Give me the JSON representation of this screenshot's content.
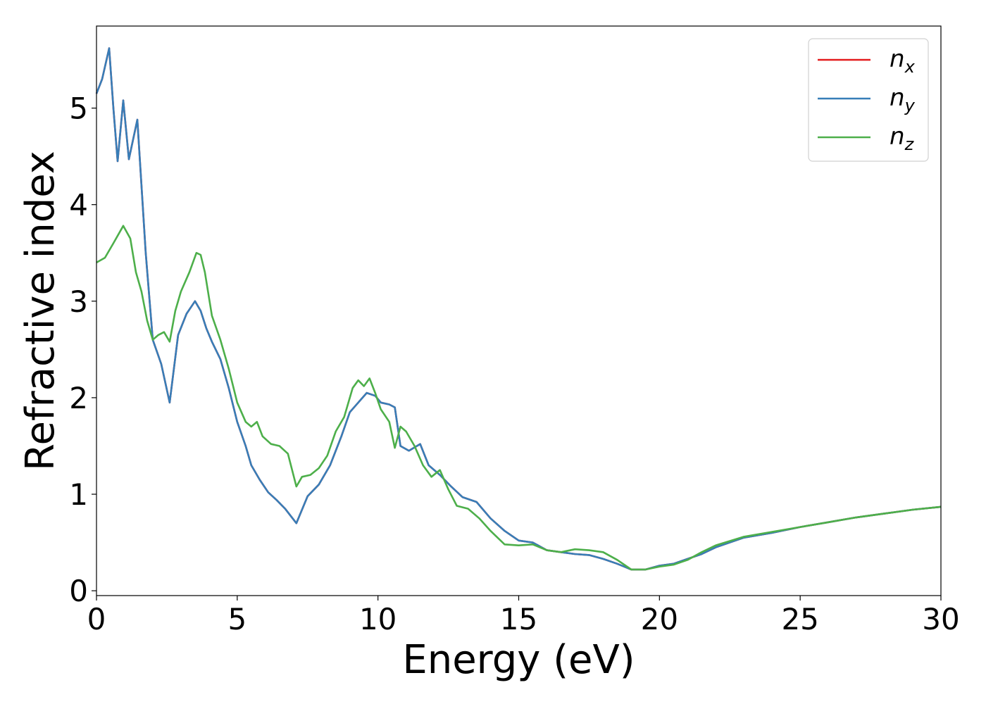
{
  "chart_data": {
    "type": "line",
    "xlabel": "Energy (eV)",
    "ylabel": "Refractive index",
    "xlim": [
      0,
      30
    ],
    "ylim": [
      -0.05,
      5.85
    ],
    "xticks": [
      0,
      5,
      10,
      15,
      20,
      25,
      30
    ],
    "yticks": [
      0,
      1,
      2,
      3,
      4,
      5
    ],
    "grid": false,
    "legend_position": "top-right",
    "series": [
      {
        "name": "n_x",
        "label_base": "n",
        "label_sub": "x",
        "color": "#e41a1c",
        "x": [
          0,
          0.2,
          0.45,
          0.6,
          0.75,
          0.95,
          1.15,
          1.45,
          1.75,
          2.0,
          2.3,
          2.6,
          2.9,
          3.2,
          3.5,
          3.7,
          3.9,
          4.1,
          4.4,
          4.7,
          5.0,
          5.3,
          5.5,
          5.8,
          6.1,
          6.4,
          6.7,
          7.1,
          7.5,
          7.9,
          8.3,
          8.7,
          9.0,
          9.3,
          9.6,
          9.9,
          10.1,
          10.4,
          10.6,
          10.8,
          11.1,
          11.5,
          11.8,
          12.2,
          12.6,
          13.0,
          13.5,
          14.0,
          14.5,
          15.0,
          15.5,
          16.0,
          16.5,
          17.0,
          17.5,
          18.0,
          18.5,
          19.0,
          19.5,
          20.0,
          20.5,
          21.0,
          21.5,
          22.0,
          23.0,
          24.0,
          25.0,
          26.0,
          27.0,
          28.0,
          29.0,
          30.0
        ],
        "y": [
          5.15,
          5.3,
          5.62,
          5.0,
          4.45,
          5.08,
          4.47,
          4.88,
          3.5,
          2.6,
          2.35,
          1.95,
          2.65,
          2.87,
          3.0,
          2.9,
          2.72,
          2.58,
          2.4,
          2.1,
          1.75,
          1.5,
          1.3,
          1.15,
          1.02,
          0.94,
          0.85,
          0.7,
          0.98,
          1.1,
          1.3,
          1.6,
          1.85,
          1.95,
          2.05,
          2.02,
          1.95,
          1.93,
          1.9,
          1.5,
          1.45,
          1.52,
          1.3,
          1.2,
          1.08,
          0.97,
          0.92,
          0.75,
          0.62,
          0.52,
          0.5,
          0.42,
          0.4,
          0.38,
          0.37,
          0.33,
          0.28,
          0.22,
          0.22,
          0.26,
          0.28,
          0.33,
          0.38,
          0.45,
          0.55,
          0.6,
          0.66,
          0.71,
          0.76,
          0.8,
          0.84,
          0.87
        ]
      },
      {
        "name": "n_y",
        "label_base": "n",
        "label_sub": "y",
        "color": "#377eb8",
        "x": [
          0,
          0.2,
          0.45,
          0.6,
          0.75,
          0.95,
          1.15,
          1.45,
          1.75,
          2.0,
          2.3,
          2.6,
          2.9,
          3.2,
          3.5,
          3.7,
          3.9,
          4.1,
          4.4,
          4.7,
          5.0,
          5.3,
          5.5,
          5.8,
          6.1,
          6.4,
          6.7,
          7.1,
          7.5,
          7.9,
          8.3,
          8.7,
          9.0,
          9.3,
          9.6,
          9.9,
          10.1,
          10.4,
          10.6,
          10.8,
          11.1,
          11.5,
          11.8,
          12.2,
          12.6,
          13.0,
          13.5,
          14.0,
          14.5,
          15.0,
          15.5,
          16.0,
          16.5,
          17.0,
          17.5,
          18.0,
          18.5,
          19.0,
          19.5,
          20.0,
          20.5,
          21.0,
          21.5,
          22.0,
          23.0,
          24.0,
          25.0,
          26.0,
          27.0,
          28.0,
          29.0,
          30.0
        ],
        "y": [
          5.15,
          5.3,
          5.62,
          5.0,
          4.45,
          5.08,
          4.47,
          4.88,
          3.5,
          2.6,
          2.35,
          1.95,
          2.65,
          2.87,
          3.0,
          2.9,
          2.72,
          2.58,
          2.4,
          2.1,
          1.75,
          1.5,
          1.3,
          1.15,
          1.02,
          0.94,
          0.85,
          0.7,
          0.98,
          1.1,
          1.3,
          1.6,
          1.85,
          1.95,
          2.05,
          2.02,
          1.95,
          1.93,
          1.9,
          1.5,
          1.45,
          1.52,
          1.3,
          1.2,
          1.08,
          0.97,
          0.92,
          0.75,
          0.62,
          0.52,
          0.5,
          0.42,
          0.4,
          0.38,
          0.37,
          0.33,
          0.28,
          0.22,
          0.22,
          0.26,
          0.28,
          0.33,
          0.38,
          0.45,
          0.55,
          0.6,
          0.66,
          0.71,
          0.76,
          0.8,
          0.84,
          0.87
        ]
      },
      {
        "name": "n_z",
        "label_base": "n",
        "label_sub": "z",
        "color": "#4daf4a",
        "x": [
          0,
          0.3,
          0.6,
          0.95,
          1.2,
          1.4,
          1.6,
          1.8,
          2.0,
          2.2,
          2.4,
          2.6,
          2.8,
          3.0,
          3.3,
          3.55,
          3.7,
          3.85,
          4.1,
          4.4,
          4.7,
          5.0,
          5.3,
          5.5,
          5.7,
          5.9,
          6.2,
          6.5,
          6.8,
          7.1,
          7.3,
          7.6,
          7.9,
          8.2,
          8.5,
          8.8,
          9.1,
          9.3,
          9.5,
          9.7,
          9.9,
          10.1,
          10.4,
          10.6,
          10.8,
          11.0,
          11.3,
          11.6,
          11.9,
          12.2,
          12.5,
          12.8,
          13.2,
          13.6,
          14.0,
          14.5,
          15.0,
          15.5,
          16.0,
          16.5,
          17.0,
          17.5,
          18.0,
          18.5,
          19.0,
          19.5,
          20.0,
          20.5,
          21.0,
          21.5,
          22.0,
          23.0,
          24.0,
          25.0,
          26.0,
          27.0,
          28.0,
          29.0,
          30.0
        ],
        "y": [
          3.4,
          3.45,
          3.6,
          3.78,
          3.65,
          3.3,
          3.1,
          2.8,
          2.6,
          2.65,
          2.68,
          2.58,
          2.9,
          3.1,
          3.3,
          3.5,
          3.48,
          3.3,
          2.85,
          2.6,
          2.3,
          1.95,
          1.75,
          1.7,
          1.75,
          1.6,
          1.52,
          1.5,
          1.42,
          1.08,
          1.18,
          1.2,
          1.27,
          1.4,
          1.65,
          1.8,
          2.1,
          2.18,
          2.12,
          2.2,
          2.05,
          1.88,
          1.75,
          1.48,
          1.7,
          1.65,
          1.5,
          1.3,
          1.18,
          1.25,
          1.05,
          0.88,
          0.85,
          0.75,
          0.62,
          0.48,
          0.47,
          0.48,
          0.42,
          0.4,
          0.43,
          0.42,
          0.4,
          0.32,
          0.22,
          0.22,
          0.25,
          0.27,
          0.32,
          0.4,
          0.47,
          0.56,
          0.61,
          0.66,
          0.71,
          0.76,
          0.8,
          0.84,
          0.87
        ]
      }
    ]
  }
}
